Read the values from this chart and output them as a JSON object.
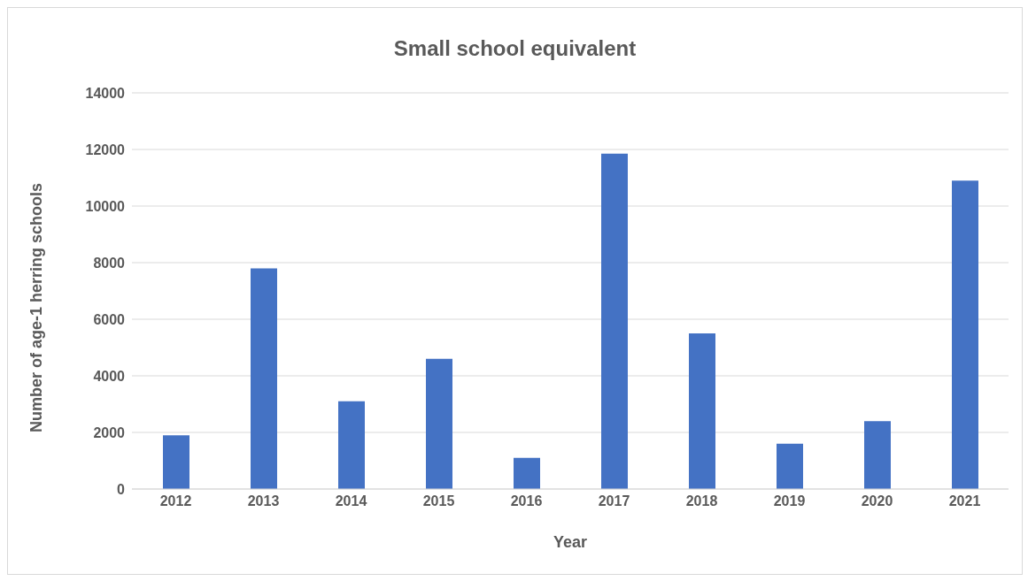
{
  "chart_data": {
    "type": "bar",
    "title": "Small school equivalent",
    "xlabel": "Year",
    "ylabel": "Number of age-1 herring schools",
    "categories": [
      "2012",
      "2013",
      "2014",
      "2015",
      "2016",
      "2017",
      "2018",
      "2019",
      "2020",
      "2021"
    ],
    "values": [
      1900,
      7800,
      3100,
      4600,
      1100,
      11850,
      5500,
      1600,
      2400,
      10900
    ],
    "color": "#4472c4",
    "ylim": [
      0,
      14000
    ],
    "yticks": [
      0,
      2000,
      4000,
      6000,
      8000,
      10000,
      12000,
      14000
    ],
    "grid": "y"
  }
}
